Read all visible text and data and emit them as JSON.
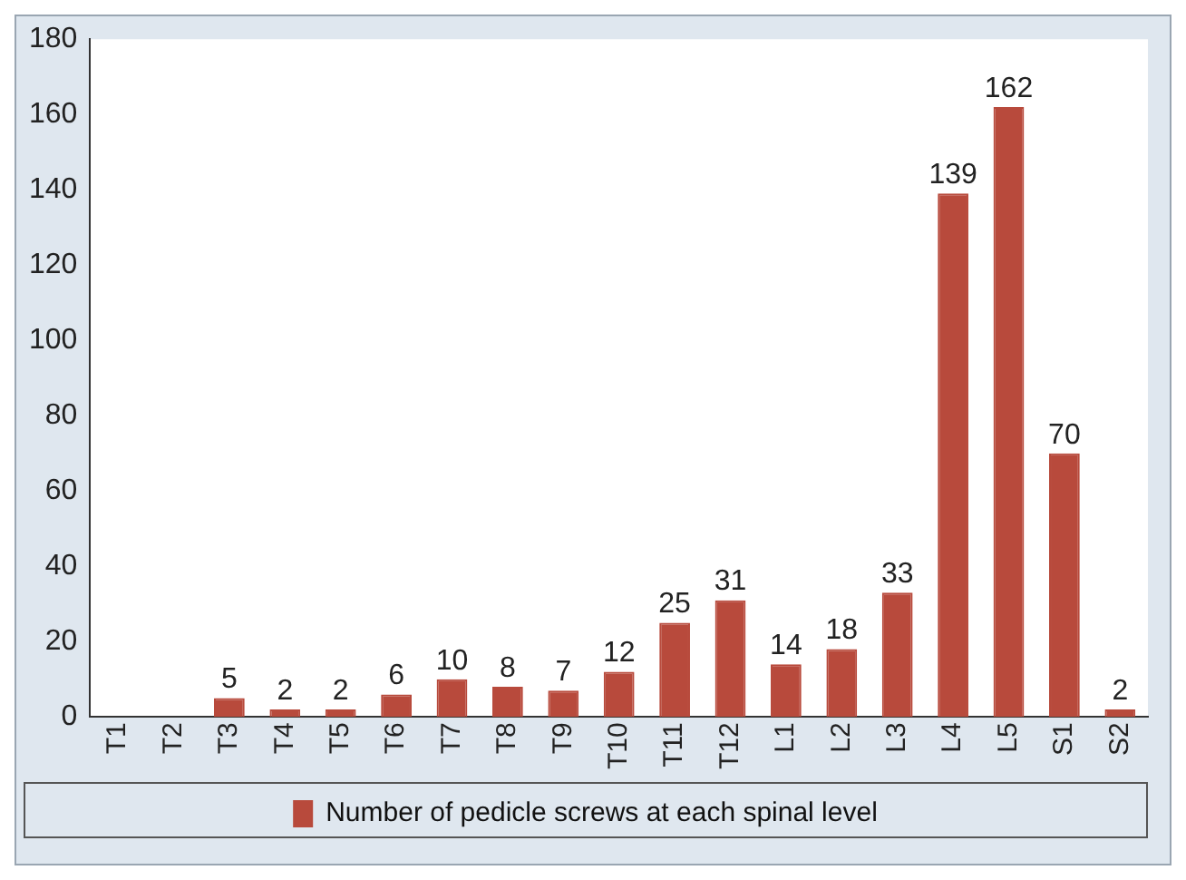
{
  "chart_data": {
    "type": "bar",
    "categories": [
      "T1",
      "T2",
      "T3",
      "T4",
      "T5",
      "T6",
      "T7",
      "T8",
      "T9",
      "T10",
      "T11",
      "T12",
      "L1",
      "L2",
      "L3",
      "L4",
      "L5",
      "S1",
      "S2"
    ],
    "series": [
      {
        "name": "Number of pedicle screws at each spinal level",
        "color": "#b84a3c",
        "values": [
          null,
          null,
          5,
          2,
          2,
          6,
          10,
          8,
          7,
          12,
          25,
          31,
          14,
          18,
          33,
          139,
          162,
          70,
          2
        ],
        "value_labels": [
          null,
          null,
          "5",
          "2",
          "2",
          "6",
          "10",
          "8",
          "7",
          "12",
          "25",
          "31",
          "14",
          "18",
          "33",
          "139",
          "162",
          "70",
          "2"
        ]
      }
    ],
    "ylim": [
      0,
      180
    ],
    "yticks": [
      0,
      20,
      40,
      60,
      80,
      100,
      120,
      140,
      160,
      180
    ],
    "grid": false,
    "legend": "bottom"
  }
}
